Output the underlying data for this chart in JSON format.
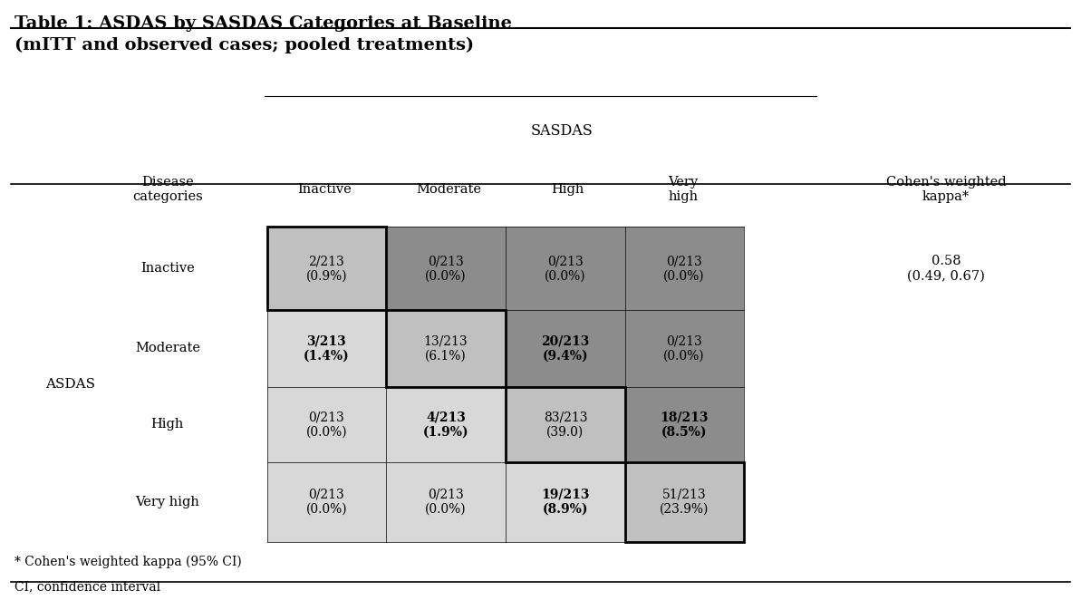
{
  "title": "Table 1: ASDAS by SASDAS Categories at Baseline\n(mITT and observed cases; pooled treatments)",
  "sasdas_header": "SASDAS",
  "col_headers": [
    "Disease\ncategories",
    "Inactive",
    "Moderate",
    "High",
    "Very\nhigh",
    "Cohen's weighted\nkappa*"
  ],
  "row_labels": [
    "Inactive",
    "Moderate",
    "High",
    "Very high"
  ],
  "asdas_label": "ASDAS",
  "kappa_value": "0.58\n(0.49, 0.67)",
  "footnote1": "* Cohen's weighted kappa (95% CI)",
  "footnote2": "CI, confidence interval",
  "cell_data": [
    [
      "2/213\n(0.9%)",
      "0/213\n(0.0%)",
      "0/213\n(0.0%)",
      "0/213\n(0.0%)"
    ],
    [
      "3/213\n(1.4%)",
      "13/213\n(6.1%)",
      "20/213\n(9.4%)",
      "0/213\n(0.0%)"
    ],
    [
      "0/213\n(0.0%)",
      "4/213\n(1.9%)",
      "83/213\n(39.0)",
      "18/213\n(8.5%)"
    ],
    [
      "0/213\n(0.0%)",
      "0/213\n(0.0%)",
      "19/213\n(8.9%)",
      "51/213\n(23.9%)"
    ]
  ],
  "cell_bold": [
    [
      false,
      false,
      false,
      false
    ],
    [
      true,
      false,
      true,
      false
    ],
    [
      false,
      true,
      false,
      true
    ],
    [
      false,
      false,
      true,
      false
    ]
  ],
  "color_light": "#D3D3D3",
  "color_dark": "#969696",
  "color_diag": "#C0C0C0",
  "bg_color": "#FFFFFF"
}
